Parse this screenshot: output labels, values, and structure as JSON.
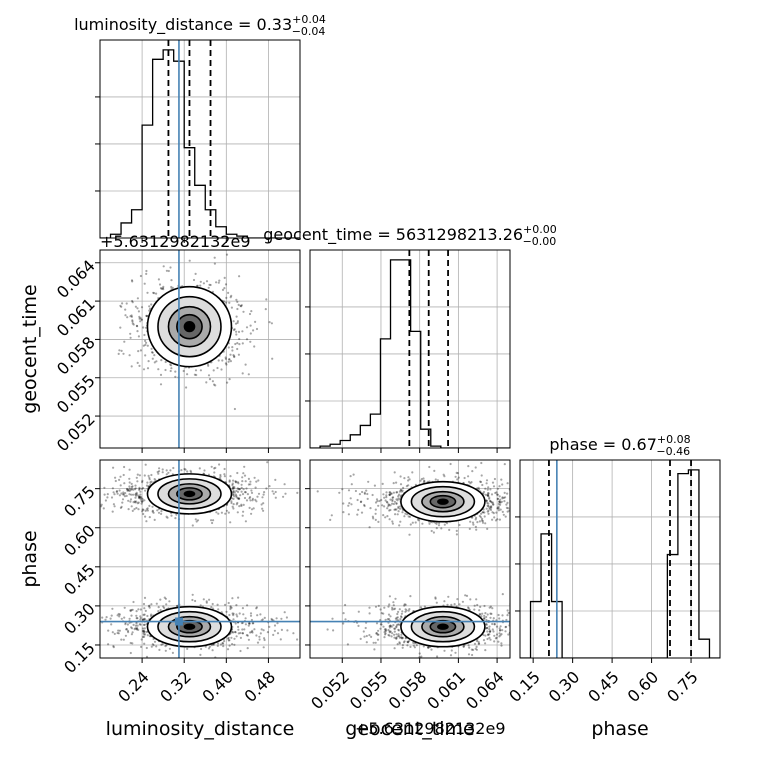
{
  "chart_data": {
    "type": "corner",
    "params": [
      "luminosity_distance",
      "geocent_time",
      "phase"
    ],
    "truths": [
      0.31,
      5631298213.26,
      0.24
    ],
    "titles": [
      {
        "label": "luminosity_distance",
        "median": "0.33",
        "plus": "0.04",
        "minus": "0.04"
      },
      {
        "label": "geocent_time",
        "median": "5631298213.26",
        "plus": "0.00",
        "minus": "0.00"
      },
      {
        "label": "phase",
        "median": "0.67",
        "plus": "0.08",
        "minus": "0.46"
      }
    ],
    "offset_label": "+5.6312982132e9",
    "axes": {
      "luminosity_distance": {
        "lim": [
          0.16,
          0.54
        ],
        "ticks": [
          "0.24",
          "0.32",
          "0.40",
          "0.48"
        ]
      },
      "geocent_time": {
        "lim": [
          0.0495,
          0.065
        ],
        "ticks": [
          "0.052",
          "0.055",
          "0.058",
          "0.061",
          "0.064"
        ]
      },
      "phase": {
        "lim": [
          0.1,
          0.86
        ],
        "ticks": [
          "0.15",
          "0.30",
          "0.45",
          "0.60",
          "0.75"
        ]
      }
    },
    "histograms": {
      "luminosity_distance": {
        "bin_start": 0.16,
        "bin_width": 0.02,
        "counts": [
          0,
          2,
          8,
          15,
          60,
          95,
          100,
          94,
          48,
          28,
          15,
          6,
          2,
          1,
          0,
          0,
          0,
          0,
          0
        ],
        "quantiles": [
          0.29,
          0.33,
          0.37
        ]
      },
      "geocent_time": {
        "bin_start": 0.0495,
        "bin_width": 0.00078,
        "counts": [
          0,
          1,
          2,
          4,
          7,
          12,
          18,
          58,
          100,
          100,
          62,
          10,
          1,
          0,
          0,
          0,
          0,
          0,
          0,
          0
        ],
        "quantiles": [
          0.0572,
          0.0587,
          0.0602
        ]
      },
      "phase": {
        "bin_start": 0.1,
        "bin_width": 0.04,
        "counts": [
          0,
          30,
          66,
          30,
          0,
          0,
          0,
          0,
          0,
          0,
          0,
          0,
          0,
          0,
          55,
          98,
          100,
          10,
          0
        ],
        "quantiles": [
          0.21,
          0.67,
          0.75
        ]
      }
    },
    "modes_2d": [
      {
        "x": "luminosity_distance",
        "y": "geocent_time",
        "centers": [
          [
            0.33,
            0.059
          ]
        ]
      },
      {
        "x": "luminosity_distance",
        "y": "phase",
        "centers": [
          [
            0.33,
            0.73
          ],
          [
            0.33,
            0.22
          ]
        ]
      },
      {
        "x": "geocent_time",
        "y": "phase",
        "centers": [
          [
            0.0598,
            0.7
          ],
          [
            0.0598,
            0.22
          ]
        ]
      }
    ]
  }
}
